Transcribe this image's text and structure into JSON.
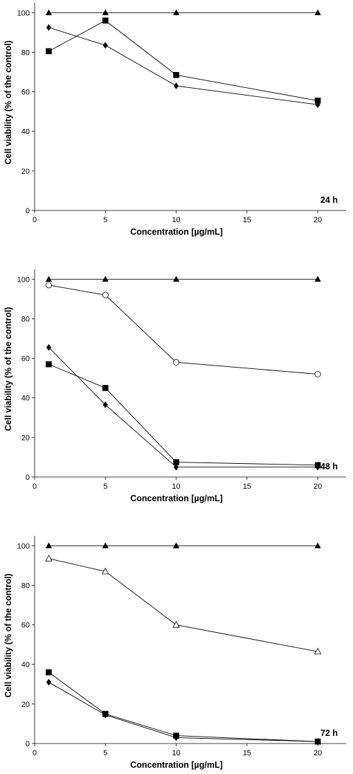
{
  "chart_data": [
    {
      "type": "line",
      "label": "24 h",
      "xlabel": "Concentration [µg/mL]",
      "ylabel": "Cell viability (% of the control)",
      "xlim": [
        0,
        22
      ],
      "ylim": [
        0,
        105
      ],
      "xticks": [
        0,
        5,
        10,
        15,
        20
      ],
      "yticks": [
        0,
        20,
        40,
        60,
        80,
        100
      ],
      "x": [
        1,
        5,
        10,
        20
      ],
      "series": [
        {
          "marker": "filled-triangle",
          "values": [
            100,
            100,
            100,
            100
          ]
        },
        {
          "marker": "filled-diamond",
          "values": [
            92.5,
            83.5,
            63,
            53.5
          ]
        },
        {
          "marker": "filled-square",
          "values": [
            80.5,
            96,
            68.5,
            55.5
          ]
        }
      ]
    },
    {
      "type": "line",
      "label": "48 h",
      "xlabel": "Concentration [µg/mL]",
      "ylabel": "Cell viability (% of the control)",
      "xlim": [
        0,
        22
      ],
      "ylim": [
        0,
        105
      ],
      "xticks": [
        0,
        5,
        10,
        15,
        20
      ],
      "yticks": [
        0,
        20,
        40,
        60,
        80,
        100
      ],
      "x": [
        1,
        5,
        10,
        20
      ],
      "series": [
        {
          "marker": "filled-triangle",
          "values": [
            100,
            100,
            100,
            100
          ]
        },
        {
          "marker": "open-circle",
          "values": [
            97,
            92,
            58,
            52
          ]
        },
        {
          "marker": "filled-diamond",
          "values": [
            65.5,
            36.5,
            5,
            5
          ]
        },
        {
          "marker": "filled-square",
          "values": [
            57,
            45,
            7.5,
            6
          ]
        }
      ]
    },
    {
      "type": "line",
      "label": "72 h",
      "xlabel": "Concentration [µg/mL]",
      "ylabel": "Cell viability (% of the control)",
      "xlim": [
        0,
        22
      ],
      "ylim": [
        0,
        105
      ],
      "xticks": [
        0,
        5,
        10,
        15,
        20
      ],
      "yticks": [
        0,
        20,
        40,
        60,
        80,
        100
      ],
      "x": [
        1,
        5,
        10,
        20
      ],
      "series": [
        {
          "marker": "filled-triangle",
          "values": [
            100,
            100,
            100,
            100
          ]
        },
        {
          "marker": "open-triangle",
          "values": [
            93.5,
            87,
            60,
            46.5
          ]
        },
        {
          "marker": "filled-square",
          "values": [
            36,
            15,
            4,
            1
          ]
        },
        {
          "marker": "filled-diamond",
          "values": [
            31,
            14.5,
            3,
            1
          ]
        }
      ]
    }
  ]
}
